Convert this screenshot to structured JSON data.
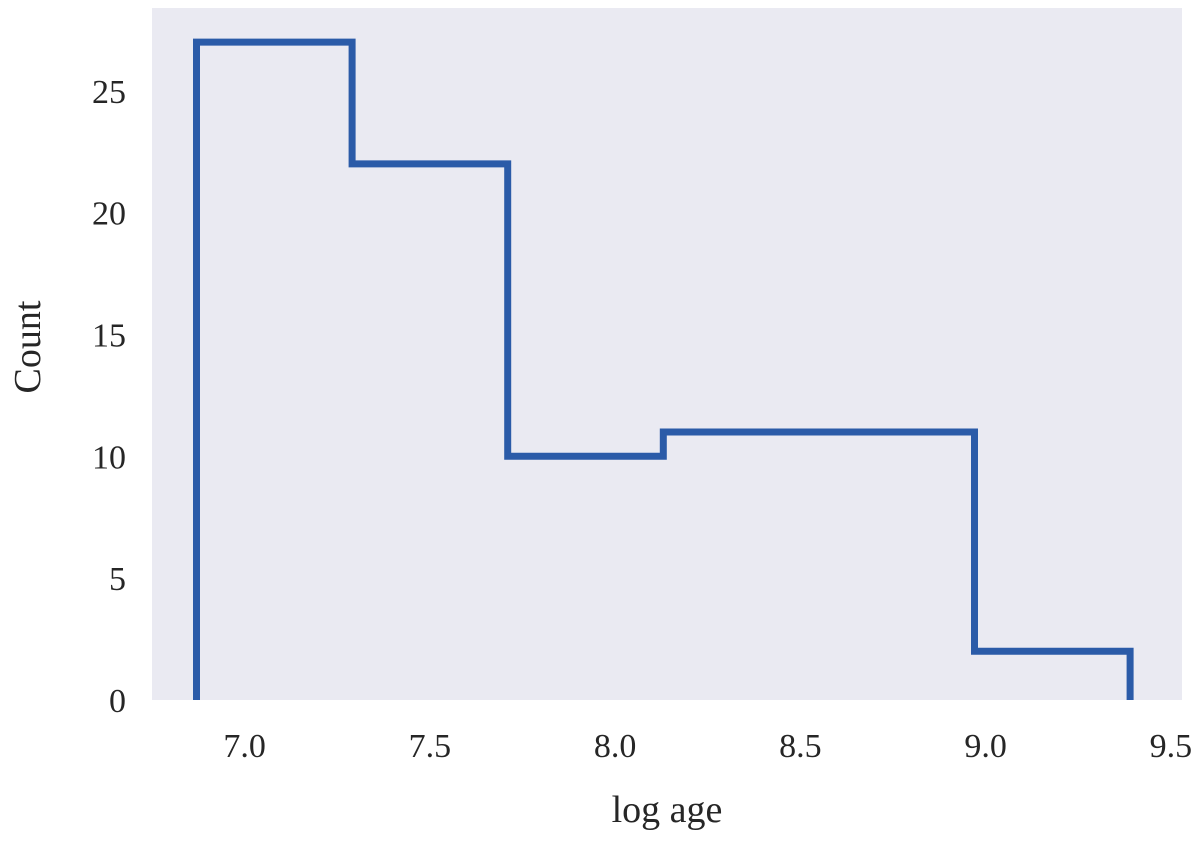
{
  "chart_data": {
    "type": "histogram-step",
    "title": "",
    "xlabel": "log age",
    "ylabel": "Count",
    "bin_edges": [
      6.87,
      7.29,
      7.71,
      8.13,
      8.55,
      8.97,
      9.39
    ],
    "counts": [
      27,
      22,
      10,
      11,
      11,
      2
    ],
    "xlim": [
      6.75,
      9.53
    ],
    "ylim": [
      0,
      28.4
    ],
    "x_ticks": [
      7.0,
      7.5,
      8.0,
      8.5,
      9.0,
      9.5
    ],
    "x_tick_labels": [
      "7.0",
      "7.5",
      "8.0",
      "8.5",
      "9.0",
      "9.5"
    ],
    "y_ticks": [
      0,
      5,
      10,
      15,
      20,
      25
    ],
    "y_tick_labels": [
      "0",
      "5",
      "10",
      "15",
      "20",
      "25"
    ],
    "grid": false,
    "legend": false,
    "line_color": "#2b5ba8",
    "plot_bg": "#eaeaf2",
    "outer_bg": "#ffffff",
    "text_color": "#262626"
  }
}
